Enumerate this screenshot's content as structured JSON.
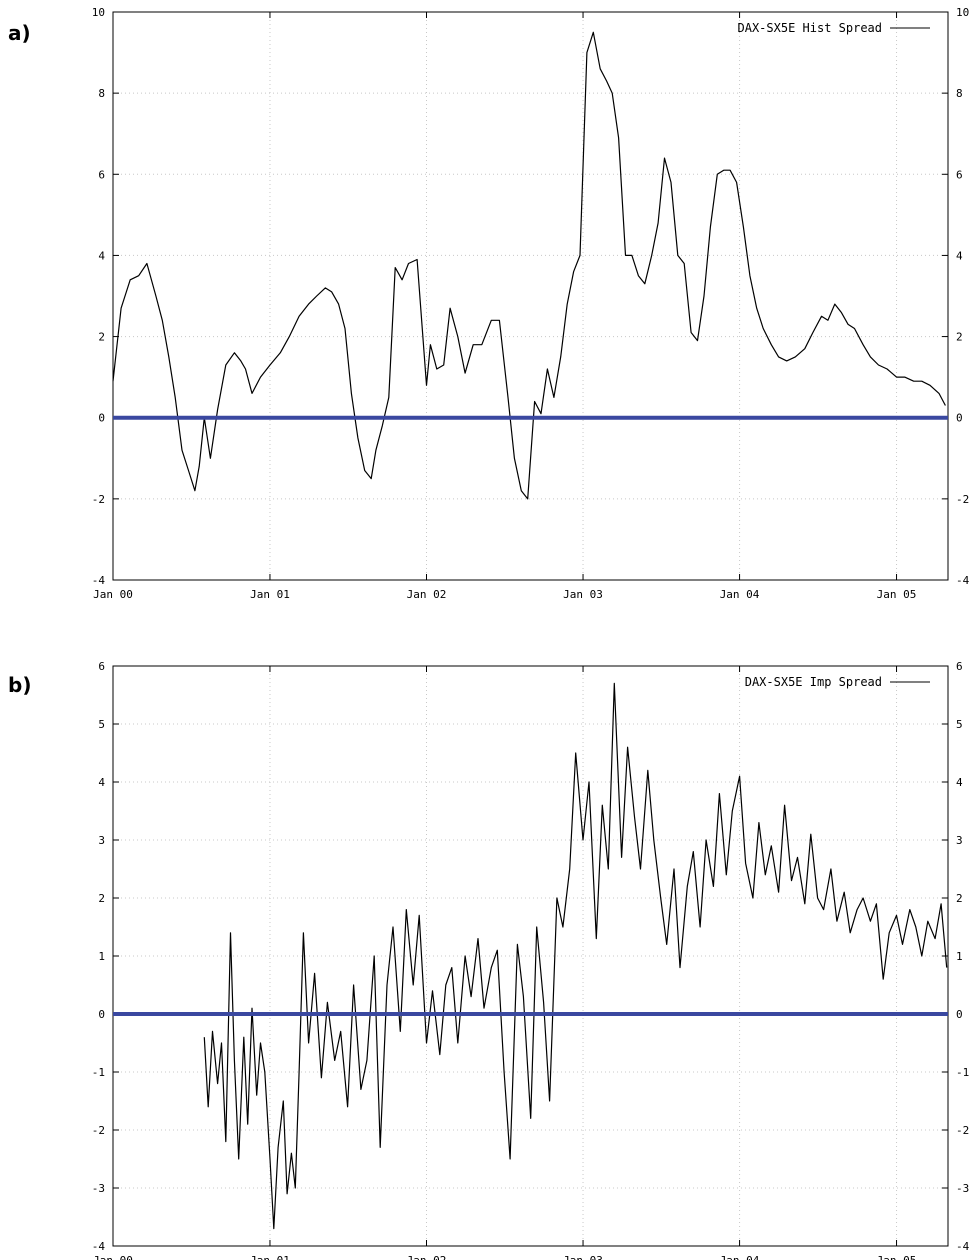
{
  "chart_data": [
    {
      "panel_label": "a)",
      "type": "line",
      "legend": "DAX-SX5E Hist Spread",
      "legend_position": "top-right",
      "x_tick_labels": [
        "Jan 00",
        "Jan 01",
        "Jan 02",
        "Jan 03",
        "Jan 04",
        "Jan 05"
      ],
      "xlim": [
        "2000-01-01",
        "2005-05-01"
      ],
      "ylim": [
        -4,
        10
      ],
      "yticks": [
        -4,
        -2,
        0,
        2,
        4,
        6,
        8,
        10
      ],
      "grid": true,
      "reference_line": {
        "y": 0,
        "color": "#3a48a0"
      },
      "line_color": "#000000",
      "series": [
        {
          "name": "DAX-SX5E Hist Spread",
          "x": [
            "2000-01-01",
            "2000-01-20",
            "2000-02-10",
            "2000-03-01",
            "2000-03-20",
            "2000-04-10",
            "2000-04-25",
            "2000-05-10",
            "2000-05-25",
            "2000-06-10",
            "2000-06-25",
            "2000-07-10",
            "2000-07-20",
            "2000-08-01",
            "2000-08-15",
            "2000-09-01",
            "2000-09-20",
            "2000-10-10",
            "2000-10-25",
            "2000-11-05",
            "2000-11-20",
            "2000-12-10",
            "2001-01-01",
            "2001-01-25",
            "2001-02-15",
            "2001-03-10",
            "2001-04-01",
            "2001-04-20",
            "2001-05-10",
            "2001-05-25",
            "2001-06-10",
            "2001-06-25",
            "2001-07-10",
            "2001-07-25",
            "2001-08-10",
            "2001-08-25",
            "2001-09-05",
            "2001-09-20",
            "2001-10-05",
            "2001-10-20",
            "2001-11-05",
            "2001-11-20",
            "2001-12-10",
            "2002-01-01",
            "2002-01-10",
            "2002-01-25",
            "2002-02-10",
            "2002-02-25",
            "2002-03-15",
            "2002-04-01",
            "2002-04-20",
            "2002-05-10",
            "2002-06-01",
            "2002-06-20",
            "2002-07-10",
            "2002-07-25",
            "2002-08-10",
            "2002-08-25",
            "2002-09-10",
            "2002-09-25",
            "2002-10-10",
            "2002-10-25",
            "2002-11-10",
            "2002-11-25",
            "2002-12-10",
            "2002-12-25",
            "2003-01-10",
            "2003-01-25",
            "2003-02-10",
            "2003-02-25",
            "2003-03-10",
            "2003-03-25",
            "2003-04-10",
            "2003-04-25",
            "2003-05-10",
            "2003-05-25",
            "2003-06-10",
            "2003-06-25",
            "2003-07-10",
            "2003-07-25",
            "2003-08-10",
            "2003-08-25",
            "2003-09-10",
            "2003-09-25",
            "2003-10-10",
            "2003-10-25",
            "2003-11-10",
            "2003-11-25",
            "2003-12-10",
            "2003-12-25",
            "2004-01-10",
            "2004-01-25",
            "2004-02-10",
            "2004-02-25",
            "2004-03-15",
            "2004-04-01",
            "2004-04-20",
            "2004-05-10",
            "2004-06-01",
            "2004-06-20",
            "2004-07-10",
            "2004-07-25",
            "2004-08-10",
            "2004-08-25",
            "2004-09-10",
            "2004-09-25",
            "2004-10-15",
            "2004-11-01",
            "2004-11-20",
            "2004-12-10",
            "2005-01-01",
            "2005-01-20",
            "2005-02-10",
            "2005-03-01",
            "2005-03-20",
            "2005-04-10",
            "2005-04-25"
          ],
          "y": [
            0.9,
            2.7,
            3.4,
            3.5,
            3.8,
            3.0,
            2.4,
            1.5,
            0.5,
            -0.8,
            -1.3,
            -1.8,
            -1.2,
            0.0,
            -1.0,
            0.2,
            1.3,
            1.6,
            1.4,
            1.2,
            0.6,
            1.0,
            1.3,
            1.6,
            2.0,
            2.5,
            2.8,
            3.0,
            3.2,
            3.1,
            2.8,
            2.2,
            0.6,
            -0.5,
            -1.3,
            -1.5,
            -0.8,
            -0.2,
            0.5,
            3.7,
            3.4,
            3.8,
            3.9,
            0.8,
            1.8,
            1.2,
            1.3,
            2.7,
            2.0,
            1.1,
            1.8,
            1.8,
            2.4,
            2.4,
            0.5,
            -1.0,
            -1.8,
            -2.0,
            0.4,
            0.1,
            1.2,
            0.5,
            1.5,
            2.8,
            3.6,
            4.0,
            9.0,
            9.5,
            8.6,
            8.3,
            8.0,
            6.9,
            4.0,
            4.0,
            3.5,
            3.3,
            4.0,
            4.8,
            6.4,
            5.8,
            4.0,
            3.8,
            2.1,
            1.9,
            3.0,
            4.7,
            6.0,
            6.1,
            6.1,
            5.8,
            4.7,
            3.5,
            2.7,
            2.2,
            1.8,
            1.5,
            1.4,
            1.5,
            1.7,
            2.1,
            2.5,
            2.4,
            2.8,
            2.6,
            2.3,
            2.2,
            1.8,
            1.5,
            1.3,
            1.2,
            1.0,
            1.0,
            0.9,
            0.9,
            0.8,
            0.6,
            0.3
          ]
        }
      ]
    },
    {
      "panel_label": "b)",
      "type": "line",
      "legend": "DAX-SX5E Imp Spread",
      "legend_position": "top-right",
      "x_tick_labels": [
        "Jan 00",
        "Jan 01",
        "Jan 02",
        "Jan 03",
        "Jan 04",
        "Jan 05"
      ],
      "xlim": [
        "2000-01-01",
        "2005-05-01"
      ],
      "ylim": [
        -4,
        6
      ],
      "yticks": [
        -4,
        -3,
        -2,
        -1,
        0,
        1,
        2,
        3,
        4,
        5,
        6
      ],
      "grid": true,
      "reference_line": {
        "y": 0,
        "color": "#3a48a0"
      },
      "line_color": "#000000",
      "series": [
        {
          "name": "DAX-SX5E Imp Spread",
          "x": [
            "2000-08-01",
            "2000-08-10",
            "2000-08-20",
            "2000-09-01",
            "2000-09-10",
            "2000-09-20",
            "2000-10-01",
            "2000-10-10",
            "2000-10-20",
            "2000-11-01",
            "2000-11-10",
            "2000-11-20",
            "2000-12-01",
            "2000-12-10",
            "2000-12-20",
            "2001-01-01",
            "2001-01-10",
            "2001-01-20",
            "2001-02-01",
            "2001-02-10",
            "2001-02-20",
            "2001-03-01",
            "2001-03-10",
            "2001-03-20",
            "2001-04-01",
            "2001-04-15",
            "2001-05-01",
            "2001-05-15",
            "2001-06-01",
            "2001-06-15",
            "2001-07-01",
            "2001-07-15",
            "2001-08-01",
            "2001-08-15",
            "2001-09-01",
            "2001-09-15",
            "2001-10-01",
            "2001-10-15",
            "2001-11-01",
            "2001-11-15",
            "2001-12-01",
            "2001-12-15",
            "2002-01-01",
            "2002-01-15",
            "2002-02-01",
            "2002-02-15",
            "2002-03-01",
            "2002-03-15",
            "2002-04-01",
            "2002-04-15",
            "2002-05-01",
            "2002-05-15",
            "2002-06-01",
            "2002-06-15",
            "2002-07-01",
            "2002-07-15",
            "2002-08-01",
            "2002-08-15",
            "2002-09-01",
            "2002-09-15",
            "2002-10-01",
            "2002-10-15",
            "2002-11-01",
            "2002-11-15",
            "2002-12-01",
            "2002-12-15",
            "2003-01-01",
            "2003-01-15",
            "2003-02-01",
            "2003-02-15",
            "2003-03-01",
            "2003-03-15",
            "2003-04-01",
            "2003-04-15",
            "2003-05-01",
            "2003-05-15",
            "2003-06-01",
            "2003-06-15",
            "2003-07-01",
            "2003-07-15",
            "2003-08-01",
            "2003-08-15",
            "2003-09-01",
            "2003-09-15",
            "2003-10-01",
            "2003-10-15",
            "2003-11-01",
            "2003-11-15",
            "2003-12-01",
            "2003-12-15",
            "2004-01-01",
            "2004-01-15",
            "2004-02-01",
            "2004-02-15",
            "2004-03-01",
            "2004-03-15",
            "2004-04-01",
            "2004-04-15",
            "2004-05-01",
            "2004-05-15",
            "2004-06-01",
            "2004-06-15",
            "2004-07-01",
            "2004-07-15",
            "2004-08-01",
            "2004-08-15",
            "2004-09-01",
            "2004-09-15",
            "2004-10-01",
            "2004-10-15",
            "2004-11-01",
            "2004-11-15",
            "2004-12-01",
            "2004-12-15",
            "2005-01-01",
            "2005-01-15",
            "2005-02-01",
            "2005-02-15",
            "2005-03-01",
            "2005-03-15",
            "2005-04-01",
            "2005-04-15",
            "2005-04-28"
          ],
          "y": [
            -0.4,
            -1.6,
            -0.3,
            -1.2,
            -0.5,
            -2.2,
            1.4,
            -0.8,
            -2.5,
            -0.4,
            -1.9,
            0.1,
            -1.4,
            -0.5,
            -1.0,
            -2.5,
            -3.7,
            -2.3,
            -1.5,
            -3.1,
            -2.4,
            -3.0,
            -1.0,
            1.4,
            -0.5,
            0.7,
            -1.1,
            0.2,
            -0.8,
            -0.3,
            -1.6,
            0.5,
            -1.3,
            -0.8,
            1.0,
            -2.3,
            0.5,
            1.5,
            -0.3,
            1.8,
            0.5,
            1.7,
            -0.5,
            0.4,
            -0.7,
            0.5,
            0.8,
            -0.5,
            1.0,
            0.3,
            1.3,
            0.1,
            0.8,
            1.1,
            -1.0,
            -2.5,
            1.2,
            0.3,
            -1.8,
            1.5,
            0.2,
            -1.5,
            2.0,
            1.5,
            2.5,
            4.5,
            3.0,
            4.0,
            1.3,
            3.6,
            2.5,
            5.7,
            2.7,
            4.6,
            3.4,
            2.5,
            4.2,
            3.0,
            2.0,
            1.2,
            2.5,
            0.8,
            2.2,
            2.8,
            1.5,
            3.0,
            2.2,
            3.8,
            2.4,
            3.5,
            4.1,
            2.6,
            2.0,
            3.3,
            2.4,
            2.9,
            2.1,
            3.6,
            2.3,
            2.7,
            1.9,
            3.1,
            2.0,
            1.8,
            2.5,
            1.6,
            2.1,
            1.4,
            1.8,
            2.0,
            1.6,
            1.9,
            0.6,
            1.4,
            1.7,
            1.2,
            1.8,
            1.5,
            1.0,
            1.6,
            1.3,
            1.9,
            0.8
          ]
        }
      ]
    }
  ]
}
